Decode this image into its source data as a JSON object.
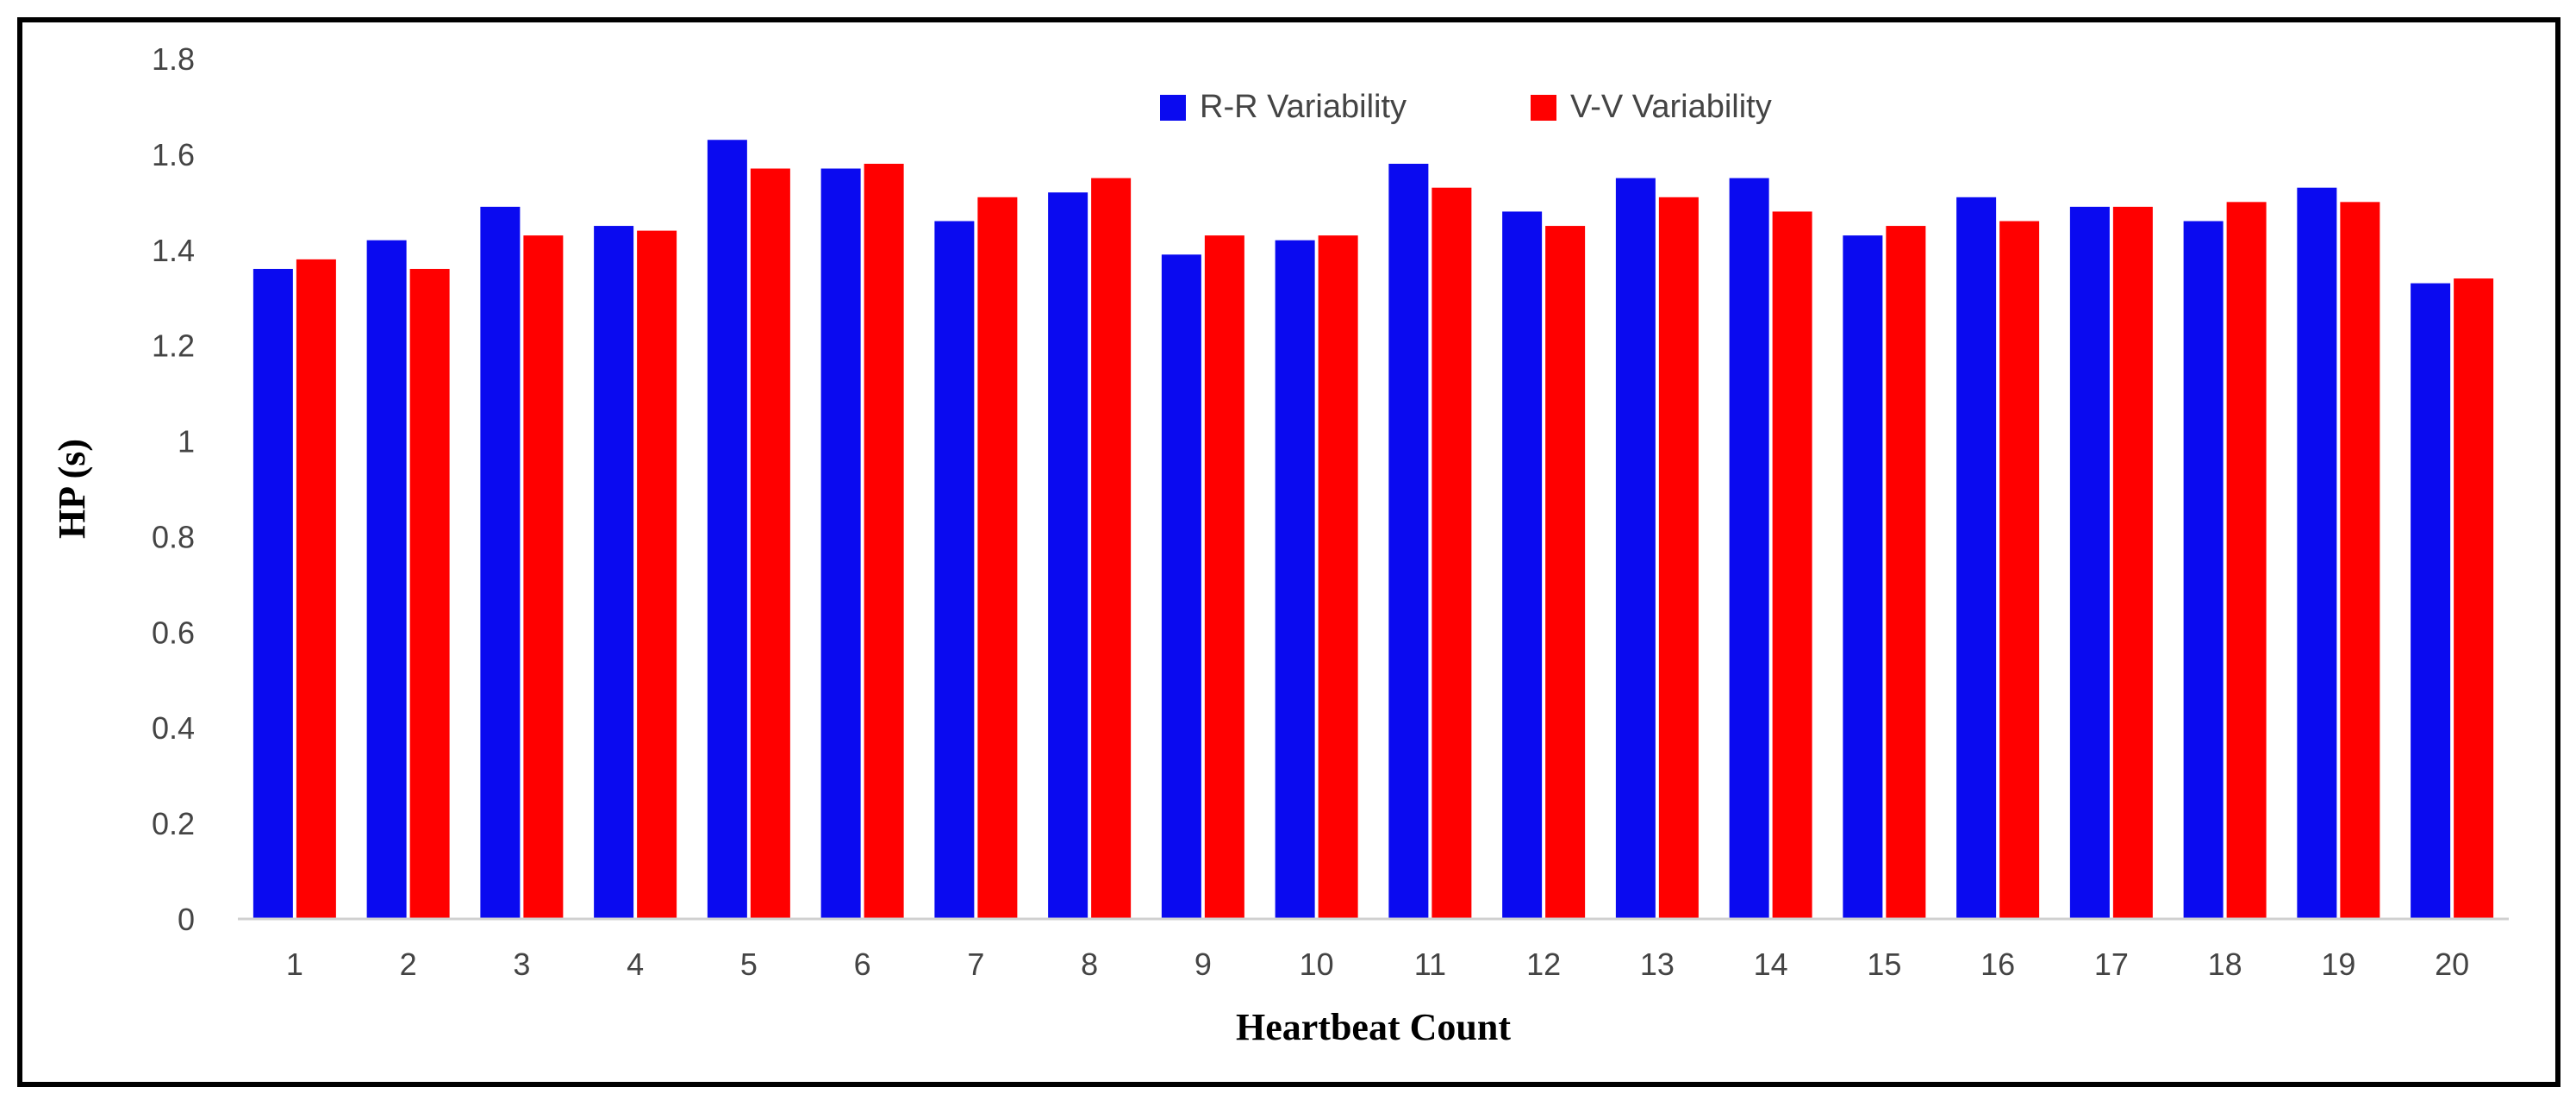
{
  "chart_data": {
    "type": "bar",
    "title": "",
    "xlabel": "Heartbeat Count",
    "ylabel": "HP (s)",
    "ylim": [
      0,
      1.8
    ],
    "yticks": [
      "0",
      "0.2",
      "0.4",
      "0.6",
      "0.8",
      "1",
      "1.2",
      "1.4",
      "1.6",
      "1.8"
    ],
    "categories": [
      "1",
      "2",
      "3",
      "4",
      "5",
      "6",
      "7",
      "8",
      "9",
      "10",
      "11",
      "12",
      "13",
      "14",
      "15",
      "16",
      "17",
      "18",
      "19",
      "20"
    ],
    "series": [
      {
        "name": "R-R Variability",
        "color": "#0a0af0",
        "values": [
          1.36,
          1.42,
          1.49,
          1.45,
          1.63,
          1.57,
          1.46,
          1.52,
          1.39,
          1.42,
          1.58,
          1.48,
          1.55,
          1.55,
          1.43,
          1.51,
          1.49,
          1.46,
          1.53,
          1.33
        ]
      },
      {
        "name": "V-V Variability",
        "color": "#ff0000",
        "values": [
          1.38,
          1.36,
          1.43,
          1.44,
          1.57,
          1.58,
          1.51,
          1.55,
          1.43,
          1.43,
          1.53,
          1.45,
          1.51,
          1.48,
          1.45,
          1.46,
          1.49,
          1.5,
          1.5,
          1.34
        ]
      }
    ],
    "legend_position": "top-center",
    "grid": false
  }
}
